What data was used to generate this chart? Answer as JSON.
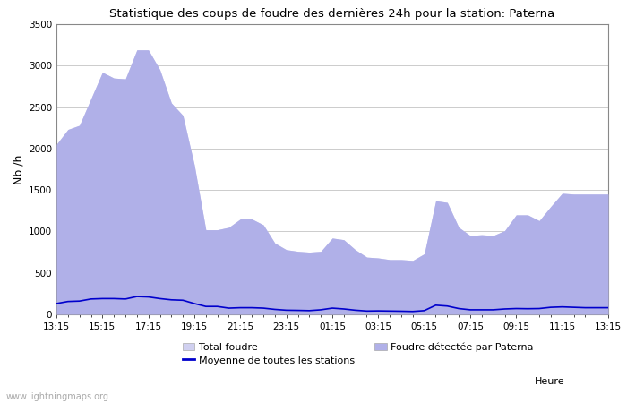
{
  "title": "Statistique des coups de foudre des dernières 24h pour la station: Paterna",
  "ylabel": "Nb /h",
  "xlim": [
    0,
    48
  ],
  "ylim": [
    0,
    3500
  ],
  "yticks": [
    0,
    500,
    1000,
    1500,
    2000,
    2500,
    3000,
    3500
  ],
  "xtick_labels": [
    "13:15",
    "15:15",
    "17:15",
    "19:15",
    "21:15",
    "23:15",
    "01:15",
    "03:15",
    "05:15",
    "07:15",
    "09:15",
    "11:15",
    "13:15"
  ],
  "xtick_positions": [
    0,
    4,
    8,
    12,
    16,
    20,
    24,
    28,
    32,
    36,
    40,
    44,
    48
  ],
  "watermark": "www.lightningmaps.org",
  "color_total_fill": "#d0d0f0",
  "color_paterna_fill": "#b0b0e8",
  "color_moyenne_line": "#0000cc",
  "background_color": "#ffffff",
  "grid_color": "#cccccc",
  "total_foudre": [
    2050,
    2230,
    2280,
    2600,
    2920,
    2850,
    2840,
    3190,
    3190,
    2950,
    2550,
    2400,
    1800,
    1020,
    1020,
    1050,
    1150,
    1150,
    1080,
    860,
    780,
    760,
    750,
    760,
    920,
    900,
    780,
    690,
    680,
    660,
    660,
    650,
    730,
    1370,
    1350,
    1050,
    950,
    960,
    950,
    1010,
    1200,
    1200,
    1130,
    1300,
    1460,
    1450,
    1450,
    1450,
    1450
  ],
  "paterna_foudre": [
    2050,
    2230,
    2280,
    2600,
    2920,
    2850,
    2840,
    3190,
    3190,
    2950,
    2550,
    2400,
    1800,
    1020,
    1020,
    1050,
    1150,
    1150,
    1080,
    860,
    780,
    760,
    750,
    760,
    920,
    900,
    780,
    690,
    680,
    660,
    660,
    650,
    730,
    1370,
    1350,
    1050,
    950,
    960,
    950,
    1010,
    1200,
    1200,
    1130,
    1300,
    1460,
    1450,
    1450,
    1450,
    1450
  ],
  "moyenne": [
    130,
    155,
    160,
    185,
    190,
    190,
    185,
    215,
    210,
    190,
    175,
    170,
    130,
    95,
    95,
    75,
    80,
    80,
    75,
    60,
    50,
    48,
    45,
    55,
    75,
    65,
    50,
    40,
    42,
    40,
    38,
    35,
    45,
    110,
    100,
    70,
    55,
    55,
    55,
    65,
    70,
    68,
    70,
    85,
    90,
    85,
    80,
    80,
    80
  ],
  "legend_total": "Total foudre",
  "legend_moyenne": "Moyenne de toutes les stations",
  "legend_paterna": "Foudre détectée par Paterna",
  "heure_label": "Heure"
}
